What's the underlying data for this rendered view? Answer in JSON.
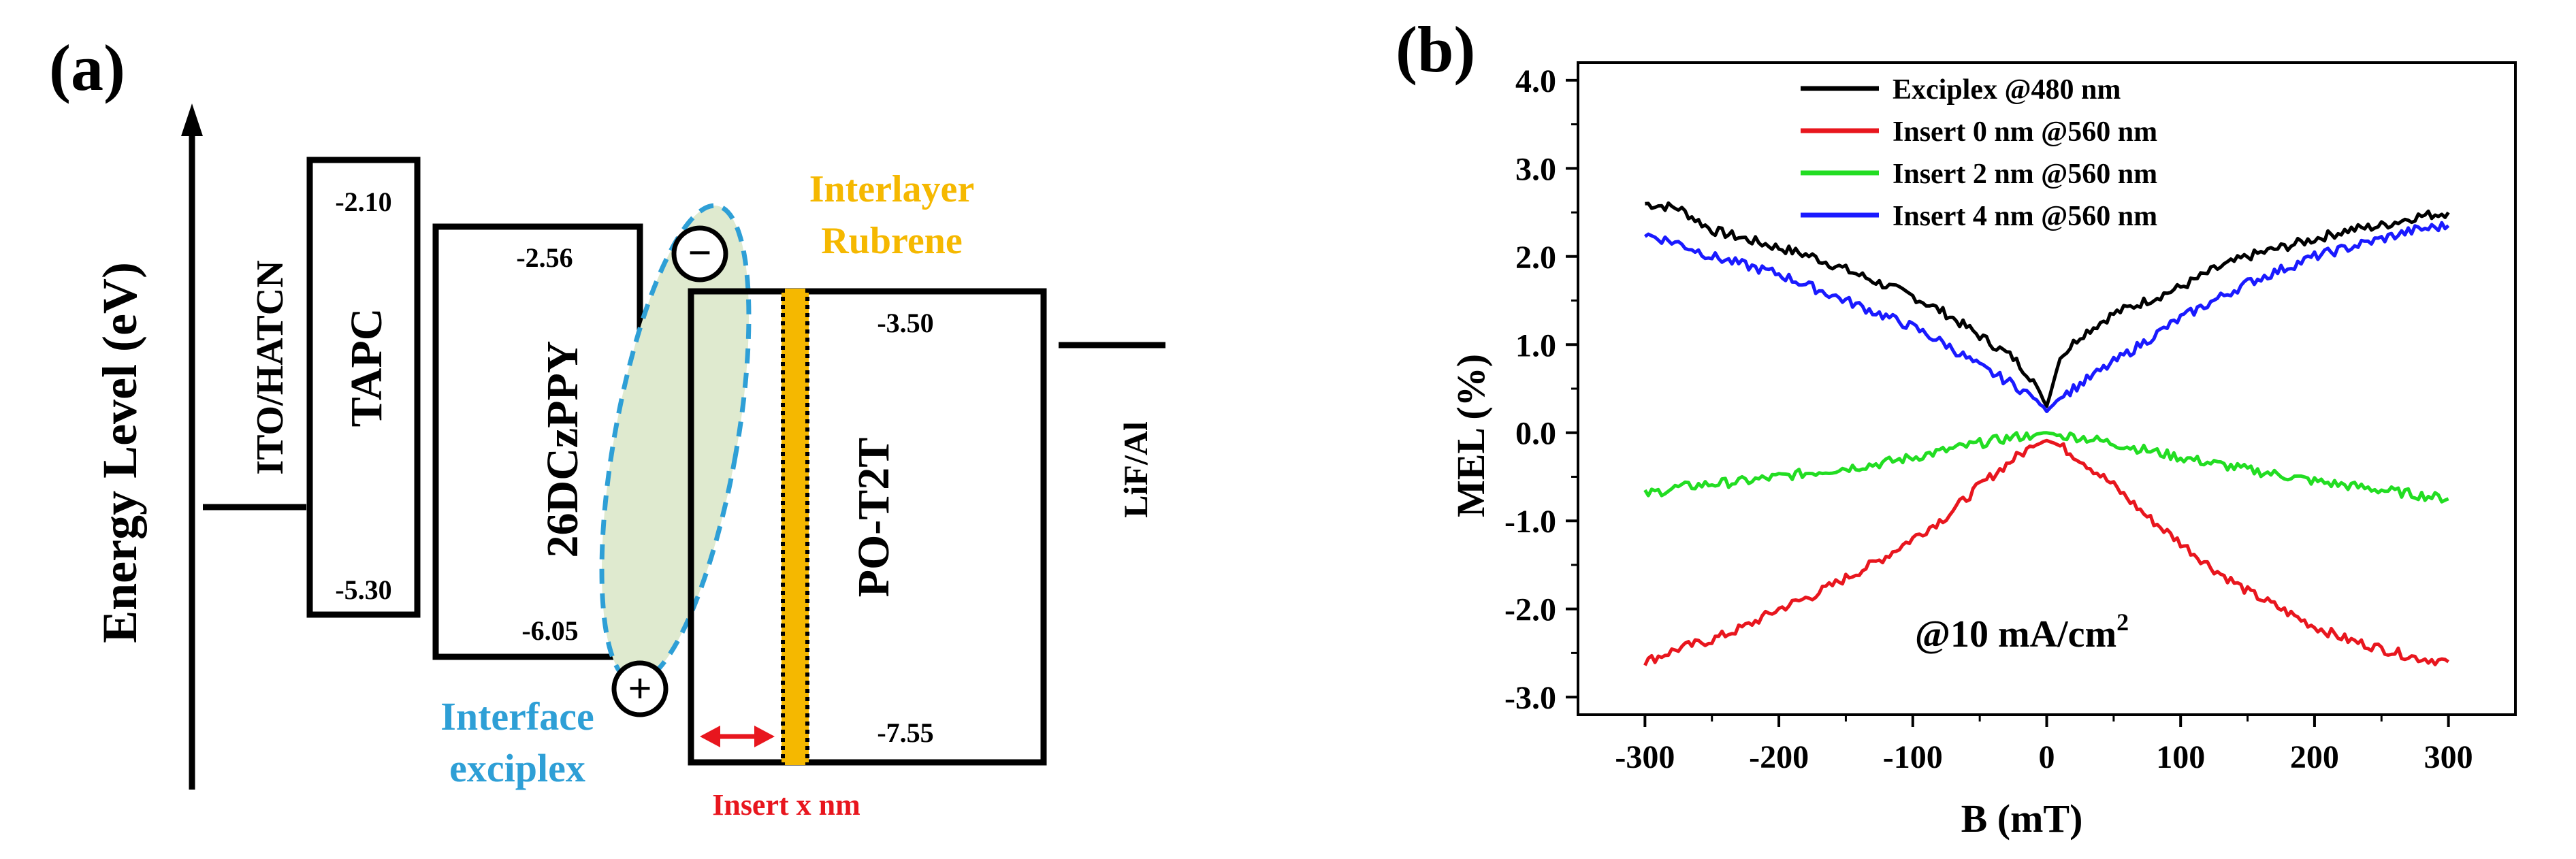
{
  "panel_a": {
    "label": "(a)",
    "y_axis_label": "Energy Level (eV)",
    "layers": [
      {
        "name": "ITO/HATCN",
        "lumo": null,
        "homo": null
      },
      {
        "name": "TAPC",
        "lumo": "-2.10",
        "homo": "-5.30"
      },
      {
        "name": "26DCzPPY",
        "lumo": "-2.56",
        "homo": "-6.05"
      },
      {
        "name": "PO-T2T",
        "lumo": "-3.50",
        "homo": "-7.55"
      },
      {
        "name": "LiF/Al",
        "lumo": null,
        "homo": null
      }
    ],
    "interlayer_line1": "Interlayer",
    "interlayer_line2": "Rubrene",
    "exciplex_line1": "Interface",
    "exciplex_line2": "exciplex",
    "insert_label": "Insert x nm",
    "minus_symbol": "−",
    "plus_symbol": "+",
    "colors": {
      "exciplex": "#2e9fd6",
      "interlayer": "#f5b800",
      "insert": "#e8161e",
      "exciplex_fill": "#dfeacf"
    }
  },
  "chart_data": {
    "type": "line",
    "panel_label": "(b)",
    "title": "",
    "xlabel": "B (mT)",
    "ylabel": "MEL (%)",
    "xlim": [
      -350,
      350
    ],
    "ylim": [
      -3.2,
      4.2
    ],
    "xticks": [
      -300,
      -200,
      -100,
      0,
      100,
      200,
      300
    ],
    "yticks": [
      -3.0,
      -2.0,
      -1.0,
      0.0,
      1.0,
      2.0,
      3.0,
      4.0
    ],
    "xtick_labels": [
      "-300",
      "-200",
      "-100",
      "0",
      "100",
      "200",
      "300"
    ],
    "ytick_labels": [
      "-3.0",
      "-2.0",
      "-1.0",
      "0.0",
      "1.0",
      "2.0",
      "3.0",
      "4.0"
    ],
    "annotation_main": "@10 mA/cm",
    "annotation_sup": "2",
    "legend_position": "top-left",
    "x": [
      -300,
      -275,
      -250,
      -225,
      -200,
      -175,
      -150,
      -125,
      -100,
      -75,
      -50,
      -25,
      -10,
      0,
      10,
      25,
      50,
      75,
      100,
      125,
      150,
      175,
      200,
      225,
      250,
      275,
      300
    ],
    "series": [
      {
        "name": "Exciplex @480 nm",
        "color": "#000000",
        "values": [
          2.6,
          2.55,
          2.3,
          2.2,
          2.1,
          2.0,
          1.85,
          1.7,
          1.55,
          1.35,
          1.1,
          0.85,
          0.6,
          0.3,
          0.85,
          1.1,
          1.35,
          1.5,
          1.65,
          1.85,
          2.0,
          2.1,
          2.2,
          2.3,
          2.35,
          2.45,
          2.5
        ]
      },
      {
        "name": "Insert 0 nm @560 nm",
        "color": "#e8161e",
        "values": [
          -2.6,
          -2.45,
          -2.35,
          -2.2,
          -2.0,
          -1.85,
          -1.65,
          -1.45,
          -1.2,
          -0.95,
          -0.6,
          -0.3,
          -0.15,
          -0.08,
          -0.15,
          -0.3,
          -0.6,
          -0.95,
          -1.25,
          -1.55,
          -1.8,
          -2.0,
          -2.2,
          -2.35,
          -2.45,
          -2.55,
          -2.6
        ]
      },
      {
        "name": "Insert 2 nm @560 nm",
        "color": "#22dd22",
        "values": [
          -0.7,
          -0.62,
          -0.58,
          -0.55,
          -0.5,
          -0.45,
          -0.4,
          -0.35,
          -0.28,
          -0.2,
          -0.12,
          -0.05,
          -0.03,
          0.0,
          -0.03,
          -0.05,
          -0.12,
          -0.2,
          -0.28,
          -0.35,
          -0.42,
          -0.48,
          -0.55,
          -0.6,
          -0.65,
          -0.7,
          -0.75
        ]
      },
      {
        "name": "Insert 4 nm @560 nm",
        "color": "#1a1aff",
        "values": [
          2.25,
          2.15,
          2.0,
          1.9,
          1.8,
          1.65,
          1.5,
          1.35,
          1.2,
          1.0,
          0.75,
          0.55,
          0.4,
          0.25,
          0.4,
          0.55,
          0.8,
          1.05,
          1.3,
          1.5,
          1.7,
          1.85,
          2.0,
          2.1,
          2.2,
          2.3,
          2.35
        ]
      }
    ]
  }
}
